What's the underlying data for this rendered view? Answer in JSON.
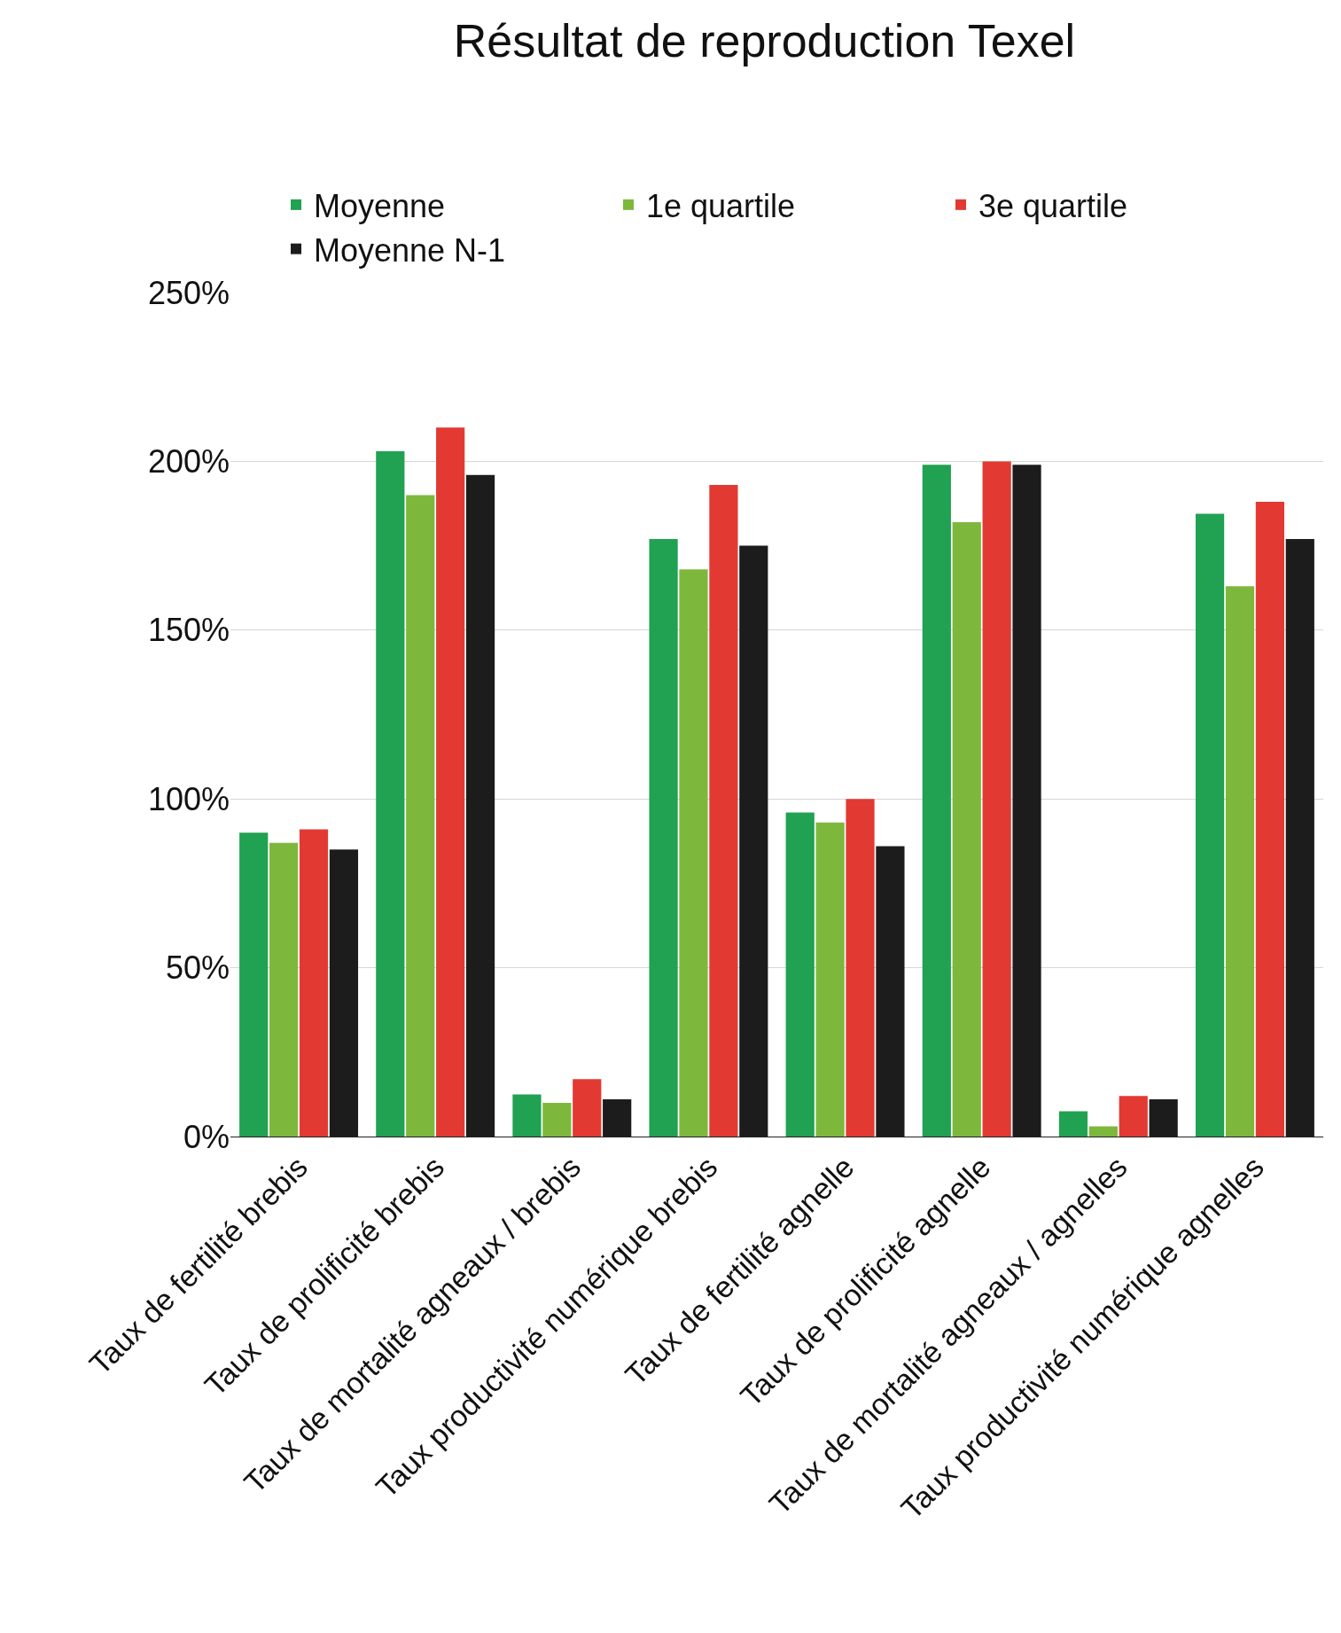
{
  "chart_data": {
    "type": "bar",
    "title": "Résultat de reproduction Texel",
    "categories": [
      "Taux de fertilité brebis",
      "Taux de prolificité brebis",
      "Taux de mortalité agneaux / brebis",
      "Taux productivité numérique brebis",
      "Taux de fertilité agnelle",
      "Taux de prolificité agnelle",
      "Taux de mortalité agneaux / agnelles",
      "Taux productivité numérique agnelles"
    ],
    "series": [
      {
        "name": "Moyenne",
        "color": "#21a152",
        "values": [
          90,
          203,
          12.5,
          177,
          96,
          199,
          7.5,
          184.5
        ]
      },
      {
        "name": "1e quartile",
        "color": "#7db83d",
        "values": [
          87,
          190,
          10,
          168,
          93,
          182,
          3,
          163
        ]
      },
      {
        "name": "3e quartile",
        "color": "#e23a32",
        "values": [
          91,
          210,
          17,
          193,
          100,
          200,
          12,
          188
        ]
      },
      {
        "name": "Moyenne N-1",
        "color": "#1c1c1c",
        "values": [
          85,
          196,
          11,
          175,
          86,
          199,
          11,
          177
        ]
      }
    ],
    "ylim": [
      0,
      250
    ],
    "yticks": [
      {
        "value": 0,
        "label": "0%"
      },
      {
        "value": 50,
        "label": "50%"
      },
      {
        "value": 100,
        "label": "100%"
      },
      {
        "value": 150,
        "label": "150%"
      },
      {
        "value": 200,
        "label": "200%"
      },
      {
        "value": 250,
        "label": "250%"
      }
    ],
    "grid": "y",
    "legend": "top"
  }
}
